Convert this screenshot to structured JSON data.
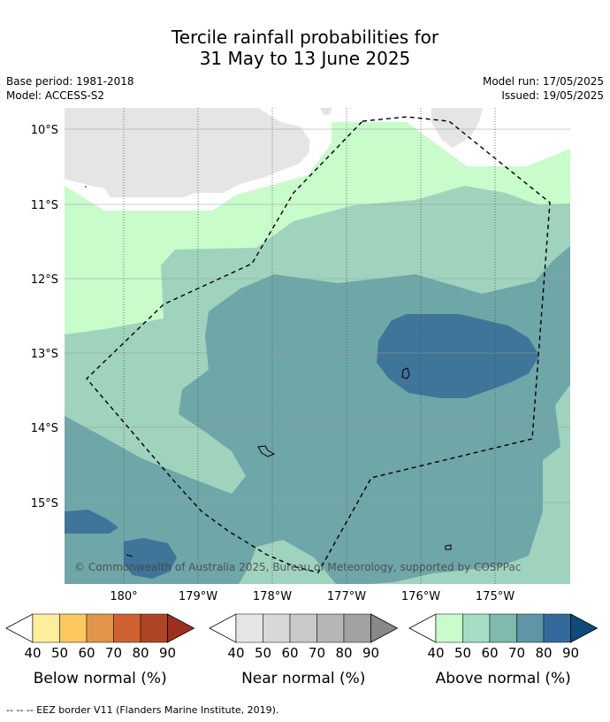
{
  "title": {
    "line1": "Tercile rainfall probabilities for",
    "line2": "31 May to 13 June 2025"
  },
  "info": {
    "base_period": "Base period: 1981-2018",
    "model": "Model: ACCESS-S2",
    "model_run": "Model run: 17/05/2025",
    "issued": "Issued: 19/05/2025"
  },
  "map": {
    "lat_labels": [
      "10°S",
      "11°S",
      "12°S",
      "13°S",
      "14°S",
      "15°S"
    ],
    "lon_labels": [
      "180°",
      "179°W",
      "178°W",
      "177°W",
      "176°W",
      "175°W"
    ],
    "copyright": "© Commonwealth of Australia 2025, Bureau of Meteorology, supported by COSPPac",
    "colors": {
      "no_data": "#e5e5e5",
      "above_40_50": "#c8fccb",
      "above_50_60": "#9fd3bd",
      "above_60_70": "#6fa6a8",
      "above_70_80": "#3e7598"
    }
  },
  "legends": [
    {
      "name": "Below normal (%)",
      "ticks": [
        "40",
        "50",
        "60",
        "70",
        "80",
        "90"
      ],
      "colors": [
        "#fdee9c",
        "#fdc860",
        "#e29548",
        "#d06232",
        "#ae4522",
        "#9e2f1d"
      ]
    },
    {
      "name": "Near normal (%)",
      "ticks": [
        "40",
        "50",
        "60",
        "70",
        "80",
        "90"
      ],
      "colors": [
        "#e5e5e5",
        "#d8d8d8",
        "#c9c9c9",
        "#b5b5b5",
        "#a1a1a1",
        "#888888"
      ]
    },
    {
      "name": "Above normal (%)",
      "ticks": [
        "40",
        "50",
        "60",
        "70",
        "80",
        "90"
      ],
      "colors": [
        "#c8fccb",
        "#a4ddc4",
        "#80b9ae",
        "#5e95a7",
        "#346a9b",
        "#0f4a7a"
      ]
    }
  ],
  "footer": "--  --  -- EEZ border V11 (Flanders Marine Institute, 2019)."
}
